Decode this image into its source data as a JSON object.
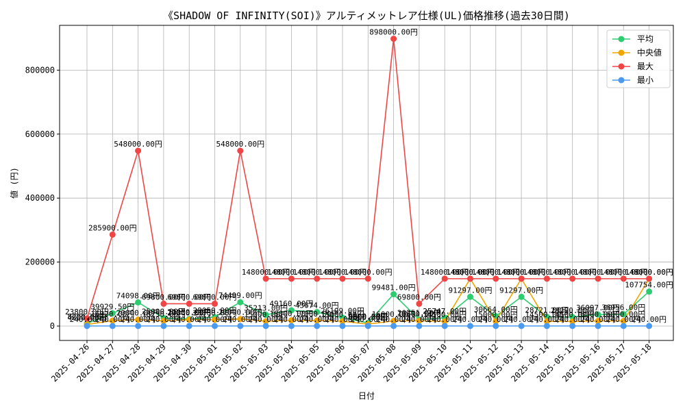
{
  "chart_data": {
    "type": "line",
    "title": "《SHADOW OF INFINITY(SOI)》アルティメットレア仕様(UL)価格推移(過去30日間)",
    "xlabel": "日付",
    "ylabel": "値 (円)",
    "ylim": [
      -45000,
      940000
    ],
    "yticks": [
      0,
      200000,
      400000,
      600000,
      800000
    ],
    "grid": true,
    "legend_position": "top-right",
    "categories": [
      "2025-04-26",
      "2025-04-27",
      "2025-04-28",
      "2025-04-29",
      "2025-04-30",
      "2025-05-01",
      "2025-05-02",
      "2025-05-03",
      "2025-05-04",
      "2025-05-05",
      "2025-05-06",
      "2025-05-07",
      "2025-05-08",
      "2025-05-09",
      "2025-05-10",
      "2025-05-11",
      "2025-05-12",
      "2025-05-13",
      "2025-05-14",
      "2025-05-15",
      "2025-05-16",
      "2025-05-17",
      "2025-05-18"
    ],
    "series": [
      {
        "name": "平均",
        "color": "#2ecc71",
        "values": [
          8200,
          39929.5,
          74098,
          25000,
          22000,
          28050,
          74499,
          35213,
          49160,
          43674,
          26199,
          9800,
          99481,
          20251,
          25747,
          91297,
          30664,
          91297,
          28721,
          28290,
          36097,
          36956,
          107754
        ],
        "labels": [
          "8200.00円",
          "39929.50円",
          "74098.00円",
          "25000.00円",
          "22000.00円",
          "28050.00円",
          "74499.00円",
          "35213.00円",
          "49160.00円",
          "43674.00円",
          "26199.00円",
          "9800.00円",
          "99481.00円",
          "20251.00円",
          "25747.00円",
          "91297.00円",
          "30664.00円",
          "91297.00円",
          "28721.00円",
          "28290.00円",
          "36097.00円",
          "36956.00円",
          "107754.00円"
        ]
      },
      {
        "name": "中央値",
        "color": "#f0a500",
        "values": [
          4800,
          16920,
          20000,
          16250,
          20000,
          20000,
          22000,
          15000,
          18000,
          17000,
          15000,
          6000,
          16000,
          16600,
          14500,
          148000,
          15000,
          148000,
          14500,
          14500,
          16000,
          16000,
          148000
        ],
        "labels": [
          "4800.00円",
          "16920.00円",
          "20000.00円",
          "16250.00円",
          "20000.00円",
          "20000.00円",
          "22000.00円",
          "15000.00円",
          "18000.00円",
          "17000.00円",
          "15000.00円",
          "6000.00円",
          "16000.00円",
          "16600.00円",
          "14500.00円",
          "148000.00円",
          "15000.00円",
          "148000.00円",
          "14500.00円",
          "14500.00円",
          "16000.00円",
          "16000.00円",
          "148000.00円"
        ]
      },
      {
        "name": "最大",
        "color": "#f04545",
        "values": [
          23800,
          285900,
          548000,
          69800,
          69800,
          69800,
          548000,
          148000,
          148000,
          148000,
          148000,
          148000,
          898000,
          69800,
          148000,
          148000,
          148000,
          148000,
          148000,
          148000,
          148000,
          148000,
          148000
        ],
        "labels": [
          "23800.00円",
          "285900.00円",
          "548000.00円",
          "69800.00円",
          "69800.00円",
          "69800.00円",
          "548000.00円",
          "148000.00円",
          "148000.00円",
          "148000.00円",
          "148000.00円",
          "148000.00円",
          "898000.00円",
          "69800.00円",
          "148000.00円",
          "148000.00円",
          "148000.00円",
          "148000.00円",
          "148000.00円",
          "148000.00円",
          "148000.00円",
          "148000.00円",
          "148000.00円"
        ]
      },
      {
        "name": "最小",
        "color": "#4a9af0",
        "values": [
          240,
          240,
          240,
          240,
          240,
          240,
          240,
          240,
          240,
          240,
          240,
          240,
          240,
          240,
          240,
          240,
          240,
          240,
          240,
          240,
          240,
          240,
          240
        ],
        "labels": [
          "240.00円",
          "240.00円",
          "240.00円",
          "240.00円",
          "240.00円",
          "240.00円",
          "240.00円",
          "240.00円",
          "240.00円",
          "240.00円",
          "240.00円",
          "240.00円",
          "240.00円",
          "240.00円",
          "240.00円",
          "240.00円",
          "240.00円",
          "240.00円",
          "240.00円",
          "240.00円",
          "240.00円",
          "240.00円",
          "240.00円"
        ]
      }
    ]
  }
}
